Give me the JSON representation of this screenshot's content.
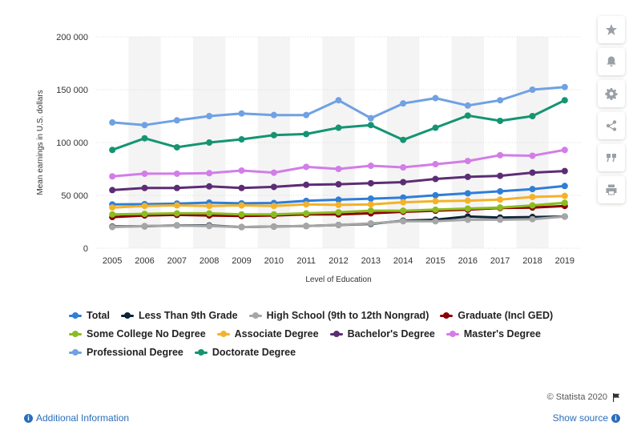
{
  "toolbar": {
    "buttons": [
      {
        "name": "favorite-button",
        "icon": "star-icon"
      },
      {
        "name": "notification-button",
        "icon": "bell-icon"
      },
      {
        "name": "settings-button",
        "icon": "gear-icon"
      },
      {
        "name": "share-button",
        "icon": "share-icon"
      },
      {
        "name": "cite-button",
        "icon": "quote-icon"
      },
      {
        "name": "print-button",
        "icon": "printer-icon"
      }
    ]
  },
  "chart_data": {
    "type": "line",
    "title": "",
    "xlabel": "Level of Education",
    "ylabel": "Mean earnings in U.S. dollars",
    "x": [
      "2005",
      "2006",
      "2007",
      "2008",
      "2009",
      "2010",
      "2011",
      "2012",
      "2013",
      "2014",
      "2015",
      "2016",
      "2017",
      "2018",
      "2019"
    ],
    "ylim": [
      0,
      200000
    ],
    "yticks": [
      0,
      50000,
      100000,
      150000,
      200000
    ],
    "ytick_labels": [
      "0",
      "50 000",
      "100 000",
      "150 000",
      "200 000"
    ],
    "grid": true,
    "legend_position": "bottom",
    "series": [
      {
        "name": "Total",
        "color": "#2f7ed8",
        "values": [
          41412,
          41655,
          42261,
          43143,
          42469,
          42775,
          44816,
          45931,
          46885,
          47964,
          50092,
          51932,
          53828,
          55941,
          58883
        ]
      },
      {
        "name": "Less Than 9th Grade",
        "color": "#0d233a",
        "values": [
          20500,
          20800,
          21600,
          21500,
          20000,
          20500,
          21000,
          22000,
          23000,
          26000,
          27000,
          30000,
          29000,
          29500,
          30000
        ]
      },
      {
        "name": "High School (9th to 12th Nongrad)",
        "color": "#a6a6a6",
        "values": [
          20000,
          21000,
          21500,
          21000,
          20000,
          20500,
          21000,
          22000,
          23500,
          25500,
          25500,
          27000,
          27000,
          27500,
          30000
        ]
      },
      {
        "name": "Graduate (Incl GED)",
        "color": "#8b0000",
        "values": [
          29500,
          31000,
          31500,
          31000,
          30500,
          31000,
          32000,
          32000,
          33000,
          34500,
          35500,
          36500,
          38000,
          38500,
          40000
        ]
      },
      {
        "name": "Some College No Degree",
        "color": "#8bbc21",
        "values": [
          32000,
          32500,
          33000,
          33000,
          32000,
          32000,
          33000,
          34000,
          35500,
          35500,
          36500,
          37500,
          38500,
          40500,
          43000
        ]
      },
      {
        "name": "Associate Degree",
        "color": "#f3b229",
        "values": [
          38500,
          40000,
          40500,
          40000,
          40500,
          40000,
          41500,
          41000,
          41500,
          43500,
          44500,
          45000,
          46000,
          48500,
          49500
        ]
      },
      {
        "name": "Bachelor's Degree",
        "color": "#5c2d74",
        "values": [
          55000,
          57000,
          57000,
          58500,
          57000,
          58000,
          60000,
          60500,
          61500,
          62500,
          65500,
          67500,
          68500,
          71500,
          73000
        ]
      },
      {
        "name": "Master's Degree",
        "color": "#d27de8",
        "values": [
          68000,
          70500,
          70500,
          71000,
          73500,
          71500,
          77000,
          75000,
          78000,
          76500,
          79500,
          82500,
          88000,
          87500,
          93000
        ]
      },
      {
        "name": "Professional Degree",
        "color": "#6fa1e3",
        "values": [
          119000,
          116500,
          121000,
          125000,
          127500,
          126000,
          126000,
          140000,
          123000,
          137000,
          142000,
          135000,
          140000,
          150000,
          152500
        ]
      },
      {
        "name": "Doctorate Degree",
        "color": "#149473",
        "values": [
          93000,
          104000,
          95500,
          100000,
          103000,
          107000,
          108000,
          114000,
          116500,
          102500,
          114000,
          125500,
          120500,
          125000,
          140000
        ]
      }
    ]
  },
  "legend_rows": [
    [
      0,
      1,
      2,
      3
    ],
    [
      4,
      5,
      6,
      7
    ],
    [
      8,
      9
    ]
  ],
  "footer": {
    "credit": "© Statista 2020",
    "additional_info": "Additional Information",
    "show_source": "Show source"
  }
}
